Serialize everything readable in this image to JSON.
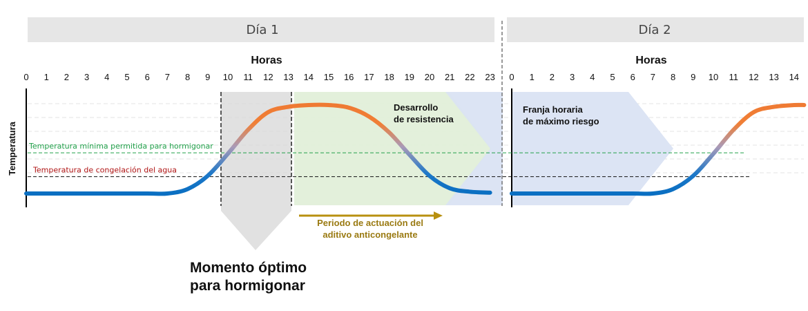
{
  "chart_data": {
    "type": "line",
    "title": "",
    "ylabel": "Temperatura",
    "days": [
      {
        "label": "Día 1",
        "xlabel": "Horas",
        "ticks": [
          "0",
          "1",
          "2",
          "3",
          "4",
          "5",
          "6",
          "7",
          "8",
          "9",
          "10",
          "11",
          "12",
          "13",
          "14",
          "15",
          "16",
          "17",
          "18",
          "19",
          "20",
          "21",
          "22",
          "23"
        ]
      },
      {
        "label": "Día 2",
        "xlabel": "Horas",
        "ticks": [
          "0",
          "1",
          "2",
          "3",
          "4",
          "5",
          "6",
          "7",
          "8",
          "9",
          "10",
          "11",
          "12",
          "13",
          "14"
        ]
      }
    ],
    "thresholds": [
      {
        "name": "Temperatura mínima permitida para hormigonar",
        "color": "#21a04a",
        "level": 0.46
      },
      {
        "name": "Temperatura de congelación del agua",
        "color": "#b01515",
        "level": 0.19
      }
    ],
    "series": [
      {
        "day": 1,
        "x": [
          0,
          3,
          6,
          7,
          8,
          9,
          10,
          11,
          12,
          13,
          14,
          15,
          16,
          17,
          18,
          19,
          20,
          21,
          22,
          23
        ],
        "y": [
          0.0,
          0.0,
          0.0,
          0.0,
          0.05,
          0.2,
          0.45,
          0.72,
          0.92,
          0.98,
          1.0,
          1.0,
          0.97,
          0.87,
          0.69,
          0.44,
          0.2,
          0.06,
          0.02,
          0.01
        ]
      },
      {
        "day": 2,
        "x": [
          0,
          3,
          6,
          7,
          8,
          9,
          10,
          11,
          12,
          13,
          14,
          14.5
        ],
        "y": [
          0.0,
          0.0,
          0.0,
          0.0,
          0.05,
          0.2,
          0.45,
          0.72,
          0.92,
          0.98,
          1.0,
          1.0
        ]
      }
    ],
    "regions": [
      {
        "label": "Momento óptimo para hormigonar",
        "lines": [
          "Momento óptimo",
          "para hormigonar"
        ],
        "start_hour": 9.5,
        "end_hour": 13,
        "color": "#d9d9d9"
      },
      {
        "label": "Desarrollo de resistencia",
        "lines": [
          "Desarrollo",
          "de resistencia"
        ],
        "start_hour": 13,
        "end_hour": 23,
        "color": "#e2efd9"
      },
      {
        "label": "Franja horaria de máximo riesgo",
        "lines": [
          "Franja horaria",
          "de máximo riesgo"
        ],
        "start_day": 1,
        "start_hour": 21,
        "end_day": 2,
        "end_hour": 8,
        "color": "#dae3f3"
      }
    ],
    "annotations": [
      {
        "label": "Periodo de actuación del aditivo anticongelante",
        "lines": [
          "Periodo de actuación del",
          "aditivo anticongelante"
        ],
        "start_hour": 13.5,
        "end_hour": 20.5,
        "color": "#b8900f"
      }
    ],
    "grid": true
  }
}
